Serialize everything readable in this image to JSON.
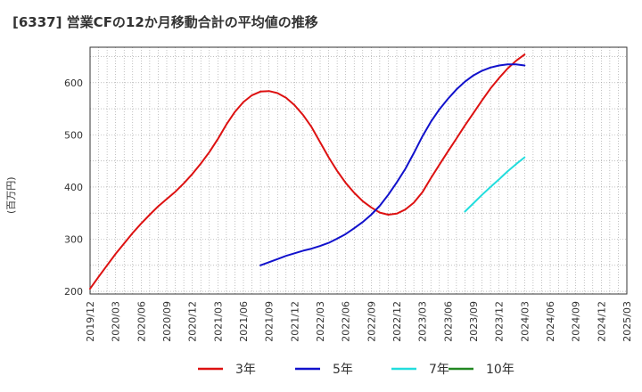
{
  "chart_data": {
    "type": "line",
    "title": "[6337]  営業CFの12か月移動合計の平均値の推移",
    "xlabel": "",
    "ylabel": "(百万円)",
    "ylim": [
      195,
      668
    ],
    "xlim": [
      "2019-12",
      "2025-03"
    ],
    "yticks": [
      200,
      300,
      400,
      500,
      600
    ],
    "xticks": [
      "2019/12",
      "2020/03",
      "2020/06",
      "2020/09",
      "2020/12",
      "2021/03",
      "2021/06",
      "2021/09",
      "2021/12",
      "2022/03",
      "2022/06",
      "2022/09",
      "2022/12",
      "2023/03",
      "2023/06",
      "2023/09",
      "2023/12",
      "2024/03",
      "2024/06",
      "2024/09",
      "2024/12",
      "2025/03"
    ],
    "grid": true,
    "legend_position": "bottom",
    "series": [
      {
        "name": "3年",
        "color": "#dd1111",
        "points": [
          [
            "2019-12",
            205
          ],
          [
            "2020-01",
            228
          ],
          [
            "2020-02",
            250
          ],
          [
            "2020-03",
            272
          ],
          [
            "2020-04",
            292
          ],
          [
            "2020-05",
            312
          ],
          [
            "2020-06",
            330
          ],
          [
            "2020-07",
            347
          ],
          [
            "2020-08",
            363
          ],
          [
            "2020-09",
            377
          ],
          [
            "2020-10",
            391
          ],
          [
            "2020-11",
            407
          ],
          [
            "2020-12",
            425
          ],
          [
            "2021-01",
            445
          ],
          [
            "2021-02",
            467
          ],
          [
            "2021-03",
            492
          ],
          [
            "2021-04",
            520
          ],
          [
            "2021-05",
            544
          ],
          [
            "2021-06",
            563
          ],
          [
            "2021-07",
            576
          ],
          [
            "2021-08",
            583
          ],
          [
            "2021-09",
            584
          ],
          [
            "2021-10",
            580
          ],
          [
            "2021-11",
            571
          ],
          [
            "2021-12",
            557
          ],
          [
            "2022-01",
            538
          ],
          [
            "2022-02",
            515
          ],
          [
            "2022-03",
            486
          ],
          [
            "2022-04",
            457
          ],
          [
            "2022-05",
            431
          ],
          [
            "2022-06",
            408
          ],
          [
            "2022-07",
            389
          ],
          [
            "2022-08",
            373
          ],
          [
            "2022-09",
            361
          ],
          [
            "2022-10",
            351
          ],
          [
            "2022-11",
            347
          ],
          [
            "2022-12",
            349
          ],
          [
            "2023-01",
            357
          ],
          [
            "2023-02",
            370
          ],
          [
            "2023-03",
            390
          ],
          [
            "2023-04",
            417
          ],
          [
            "2023-05",
            443
          ],
          [
            "2023-06",
            468
          ],
          [
            "2023-07",
            493
          ],
          [
            "2023-08",
            518
          ],
          [
            "2023-09",
            542
          ],
          [
            "2023-10",
            566
          ],
          [
            "2023-11",
            589
          ],
          [
            "2023-12",
            609
          ],
          [
            "2024-01",
            627
          ],
          [
            "2024-02",
            642
          ],
          [
            "2024-03",
            654
          ]
        ]
      },
      {
        "name": "5年",
        "color": "#1111cc",
        "points": [
          [
            "2021-08",
            250
          ],
          [
            "2021-09",
            256
          ],
          [
            "2021-10",
            262
          ],
          [
            "2021-11",
            268
          ],
          [
            "2021-12",
            273
          ],
          [
            "2022-01",
            278
          ],
          [
            "2022-02",
            282
          ],
          [
            "2022-03",
            287
          ],
          [
            "2022-04",
            293
          ],
          [
            "2022-05",
            301
          ],
          [
            "2022-06",
            310
          ],
          [
            "2022-07",
            321
          ],
          [
            "2022-08",
            333
          ],
          [
            "2022-09",
            347
          ],
          [
            "2022-10",
            364
          ],
          [
            "2022-11",
            385
          ],
          [
            "2022-12",
            409
          ],
          [
            "2023-01",
            435
          ],
          [
            "2023-02",
            465
          ],
          [
            "2023-03",
            497
          ],
          [
            "2023-04",
            525
          ],
          [
            "2023-05",
            549
          ],
          [
            "2023-06",
            569
          ],
          [
            "2023-07",
            587
          ],
          [
            "2023-08",
            602
          ],
          [
            "2023-09",
            614
          ],
          [
            "2023-10",
            623
          ],
          [
            "2023-11",
            629
          ],
          [
            "2023-12",
            633
          ],
          [
            "2024-01",
            635
          ],
          [
            "2024-02",
            635
          ],
          [
            "2024-03",
            633
          ]
        ]
      },
      {
        "name": "7年",
        "color": "#22dddd",
        "points": [
          [
            "2023-08",
            353
          ],
          [
            "2023-09",
            369
          ],
          [
            "2023-10",
            385
          ],
          [
            "2023-11",
            400
          ],
          [
            "2023-12",
            415
          ],
          [
            "2024-01",
            430
          ],
          [
            "2024-02",
            444
          ],
          [
            "2024-03",
            457
          ]
        ]
      },
      {
        "name": "10年",
        "color": "#228822",
        "points": []
      }
    ]
  }
}
